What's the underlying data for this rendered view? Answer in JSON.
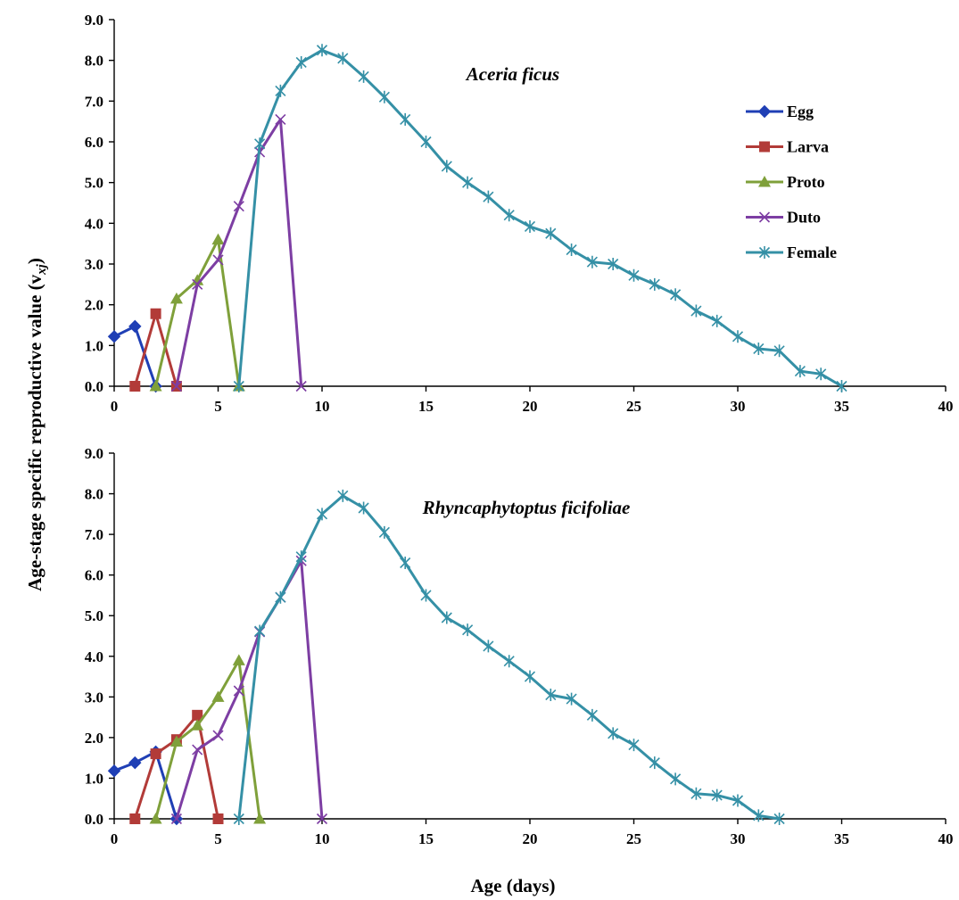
{
  "figure": {
    "ylabel": "Age-stage specific reproductive value (v",
    "ylabel_sub": "xj",
    "ylabel_close": ")",
    "xlabel": "Age (days)"
  },
  "colors": {
    "Egg": "#1f3fb5",
    "Larva": "#b23b38",
    "Proto": "#7fa03a",
    "Duto": "#7d3ea3",
    "Female": "#3590a6"
  },
  "chart_data": [
    {
      "type": "line",
      "title": "Aceria ficus",
      "xlim": [
        0,
        40
      ],
      "ylim": [
        0,
        9
      ],
      "x_ticks": [
        "0",
        "5",
        "10",
        "15",
        "20",
        "25",
        "30",
        "35",
        "40"
      ],
      "y_ticks": [
        "0.0",
        "1.0",
        "2.0",
        "3.0",
        "4.0",
        "5.0",
        "6.0",
        "7.0",
        "8.0",
        "9.0"
      ],
      "legend": "top-right",
      "series": [
        {
          "name": "Egg",
          "marker": "diamond",
          "x": [
            0,
            1,
            2
          ],
          "y": [
            1.22,
            1.47,
            0.0
          ]
        },
        {
          "name": "Larva",
          "marker": "square",
          "x": [
            1,
            2,
            3
          ],
          "y": [
            0.0,
            1.78,
            0.0
          ]
        },
        {
          "name": "Proto",
          "marker": "triangle",
          "x": [
            2,
            3,
            4,
            5,
            6
          ],
          "y": [
            0.0,
            2.15,
            2.6,
            3.6,
            0.0
          ]
        },
        {
          "name": "Duto",
          "marker": "x",
          "x": [
            3,
            4,
            5,
            6,
            7,
            8,
            9
          ],
          "y": [
            0.0,
            2.5,
            3.1,
            4.42,
            5.75,
            6.55,
            0.0
          ]
        },
        {
          "name": "Female",
          "marker": "star",
          "x": [
            6,
            7,
            8,
            9,
            10,
            11,
            12,
            13,
            14,
            15,
            16,
            17,
            18,
            19,
            20,
            21,
            22,
            23,
            24,
            25,
            26,
            27,
            28,
            29,
            30,
            31,
            32,
            33,
            34,
            35
          ],
          "y": [
            0.0,
            5.95,
            7.25,
            7.95,
            8.25,
            8.05,
            7.6,
            7.1,
            6.55,
            6.0,
            5.4,
            5.0,
            4.65,
            4.2,
            3.92,
            3.75,
            3.35,
            3.05,
            3.0,
            2.72,
            2.5,
            2.25,
            1.85,
            1.6,
            1.22,
            0.92,
            0.87,
            0.37,
            0.3,
            0.0
          ]
        }
      ]
    },
    {
      "type": "line",
      "title": "Rhyncaphytoptus ficifoliae",
      "xlim": [
        0,
        40
      ],
      "ylim": [
        0,
        9
      ],
      "x_ticks": [
        "0",
        "5",
        "10",
        "15",
        "20",
        "25",
        "30",
        "35",
        "40"
      ],
      "y_ticks": [
        "0.0",
        "1.0",
        "2.0",
        "3.0",
        "4.0",
        "5.0",
        "6.0",
        "7.0",
        "8.0",
        "9.0"
      ],
      "series": [
        {
          "name": "Egg",
          "marker": "diamond",
          "x": [
            0,
            1,
            2,
            3
          ],
          "y": [
            1.18,
            1.38,
            1.65,
            0.0
          ]
        },
        {
          "name": "Larva",
          "marker": "square",
          "x": [
            1,
            2,
            3,
            4,
            5
          ],
          "y": [
            0.0,
            1.6,
            1.95,
            2.55,
            0.0
          ]
        },
        {
          "name": "Proto",
          "marker": "triangle",
          "x": [
            2,
            3,
            4,
            5,
            6,
            7
          ],
          "y": [
            0.0,
            1.9,
            2.3,
            3.0,
            3.9,
            0.0
          ]
        },
        {
          "name": "Duto",
          "marker": "x",
          "x": [
            3,
            4,
            5,
            6,
            7,
            8,
            9,
            10
          ],
          "y": [
            0.0,
            1.7,
            2.05,
            3.15,
            4.6,
            5.45,
            6.35,
            0.0
          ]
        },
        {
          "name": "Female",
          "marker": "star",
          "x": [
            6,
            7,
            8,
            9,
            10,
            11,
            12,
            13,
            14,
            15,
            16,
            17,
            18,
            19,
            20,
            21,
            22,
            23,
            24,
            25,
            26,
            27,
            28,
            29,
            30,
            31,
            32
          ],
          "y": [
            0.0,
            4.62,
            5.45,
            6.45,
            7.5,
            7.95,
            7.65,
            7.05,
            6.3,
            5.5,
            4.95,
            4.65,
            4.25,
            3.88,
            3.5,
            3.05,
            2.95,
            2.55,
            2.1,
            1.82,
            1.38,
            0.98,
            0.62,
            0.58,
            0.45,
            0.08,
            0.0
          ]
        }
      ]
    }
  ]
}
